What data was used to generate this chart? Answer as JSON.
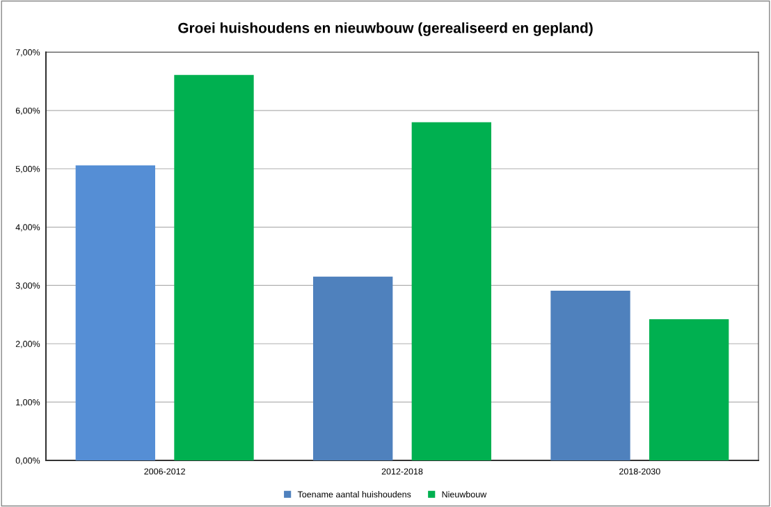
{
  "chart_data": {
    "type": "bar",
    "title": "Groei huishoudens en nieuwbouw (gerealiseerd en gepland)",
    "categories": [
      "2006-2012",
      "2012-2018",
      "2018-2030"
    ],
    "series": [
      {
        "name": "Toename aantal huishoudens",
        "color": "#4f81bd",
        "colors": [
          "#558ed5",
          "#4f81bd",
          "#4f81bd"
        ],
        "values": [
          5.06,
          3.15,
          2.91
        ]
      },
      {
        "name": "Nieuwbouw",
        "color": "#00b050",
        "values": [
          6.61,
          5.8,
          2.42
        ]
      }
    ],
    "ylim": [
      0,
      7
    ],
    "yticks": [
      {
        "value": 0,
        "label": "0,00%"
      },
      {
        "value": 1,
        "label": "1,00%"
      },
      {
        "value": 2,
        "label": "2,00%"
      },
      {
        "value": 3,
        "label": "3,00%"
      },
      {
        "value": 4,
        "label": "4,00%"
      },
      {
        "value": 5,
        "label": "5,00%"
      },
      {
        "value": 6,
        "label": "6,00%"
      },
      {
        "value": 7,
        "label": "7,00%"
      }
    ],
    "grid": "y",
    "legend": "bottom"
  }
}
